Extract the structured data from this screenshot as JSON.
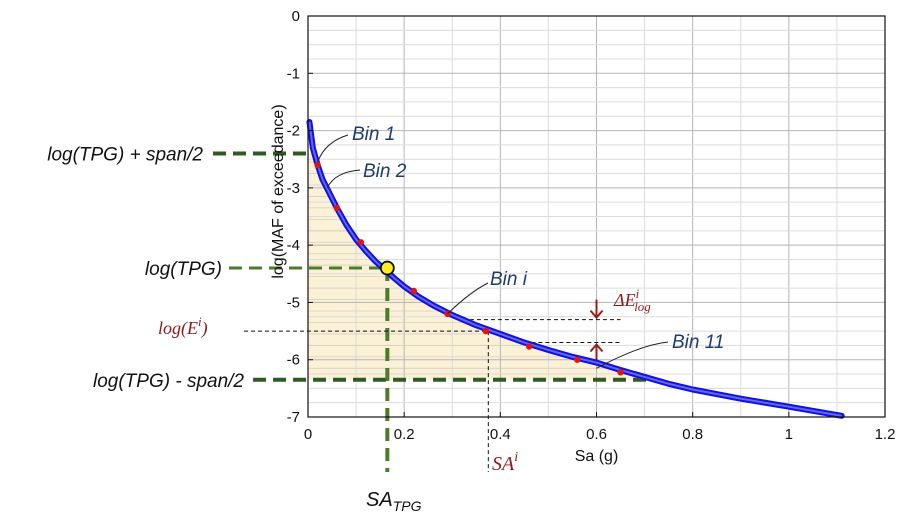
{
  "chart_data": {
    "type": "line",
    "xlabel": "Sa (g)",
    "ylabel": "log(MAF of exceedance)",
    "xlim": [
      0,
      1.2
    ],
    "ylim": [
      -7,
      0
    ],
    "xticks": [
      "0",
      "0.2",
      "0.4",
      "0.6",
      "0.8",
      "1",
      "1.2"
    ],
    "yticks": [
      "0",
      "-1",
      "-2",
      "-3",
      "-4",
      "-5",
      "-6",
      "-7"
    ],
    "grid": true,
    "series": [
      {
        "color": "#1010e8",
        "x": [
          0.003,
          0.01,
          0.02,
          0.03,
          0.045,
          0.06,
          0.08,
          0.1,
          0.12,
          0.14,
          0.16,
          0.18,
          0.2,
          0.23,
          0.26,
          0.3,
          0.35,
          0.4,
          0.45,
          0.5,
          0.55,
          0.6,
          0.65,
          0.7,
          0.75,
          0.8,
          0.9,
          1.0,
          1.11
        ],
        "y": [
          -1.85,
          -2.3,
          -2.6,
          -2.85,
          -3.1,
          -3.35,
          -3.65,
          -3.9,
          -4.1,
          -4.28,
          -4.43,
          -4.58,
          -4.72,
          -4.9,
          -5.05,
          -5.22,
          -5.4,
          -5.55,
          -5.7,
          -5.83,
          -5.95,
          -6.05,
          -6.18,
          -6.3,
          -6.42,
          -6.52,
          -6.68,
          -6.82,
          -6.98
        ]
      }
    ],
    "bin_points": {
      "color": "#e11414",
      "x": [
        0.02,
        0.06,
        0.11,
        0.16,
        0.22,
        0.29,
        0.37,
        0.46,
        0.56,
        0.65
      ],
      "y": [
        -2.6,
        -3.35,
        -3.95,
        -4.43,
        -4.8,
        -5.2,
        -5.5,
        -5.77,
        -6.0,
        -6.22
      ]
    },
    "tpg_point": {
      "x": 0.165,
      "y": -4.4,
      "color": "#ffee22"
    },
    "tpg_levels": {
      "upper": -2.4,
      "center": -4.4,
      "lower": -6.35
    },
    "example_bin": {
      "sa": 0.375,
      "logE": -5.5,
      "upper": -5.3,
      "lower": -5.7
    },
    "annotations": {
      "bin1": "Bin 1",
      "bin2": "Bin 2",
      "bini": "Bin i",
      "bin11": "Bin 11",
      "delta_main": "ΔE",
      "delta_sup": "i",
      "delta_sub": "log",
      "logE_main": "log(E",
      "logE_sup": "i",
      "logE_end": ")",
      "sai_main": "SA",
      "sai_sup": "i",
      "satpg_main": "SA",
      "satpg_sub": "TPG"
    },
    "left_labels": {
      "upper": "log(TPG) + span/2",
      "center": "log(TPG)",
      "lower": "log(TPG) - span/2"
    }
  }
}
